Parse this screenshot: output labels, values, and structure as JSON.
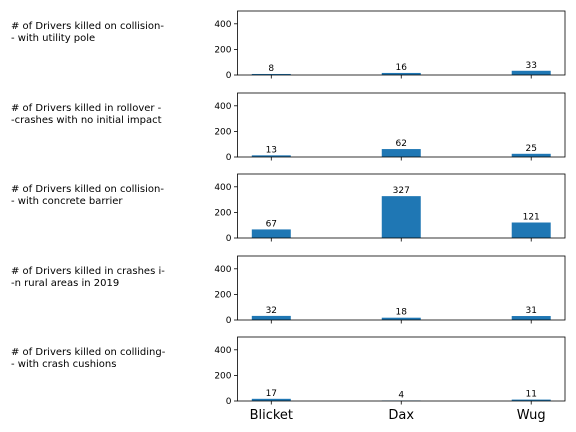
{
  "chart_data": {
    "type": "bar",
    "layout": "small-multiples",
    "categories": [
      "Blicket",
      "Dax",
      "Wug"
    ],
    "ylim": [
      0,
      500
    ],
    "yticks": [
      0,
      200,
      400
    ],
    "grid": false,
    "bar_color": "#1f77b4",
    "panels": [
      {
        "label_lines": [
          "# of Drivers killed on collision-",
          "- with utility pole"
        ],
        "values": [
          8,
          16,
          33
        ]
      },
      {
        "label_lines": [
          "# of Drivers killed in rollover -",
          "-crashes with no initial impact"
        ],
        "values": [
          13,
          62,
          25
        ]
      },
      {
        "label_lines": [
          "# of Drivers killed on collision-",
          "- with concrete barrier"
        ],
        "values": [
          67,
          327,
          121
        ]
      },
      {
        "label_lines": [
          "# of Drivers killed in crashes i-",
          "-n rural areas in 2019"
        ],
        "values": [
          32,
          18,
          31
        ]
      },
      {
        "label_lines": [
          "# of Drivers killed on colliding-",
          "- with crash cushions"
        ],
        "values": [
          17,
          4,
          11
        ]
      }
    ]
  }
}
